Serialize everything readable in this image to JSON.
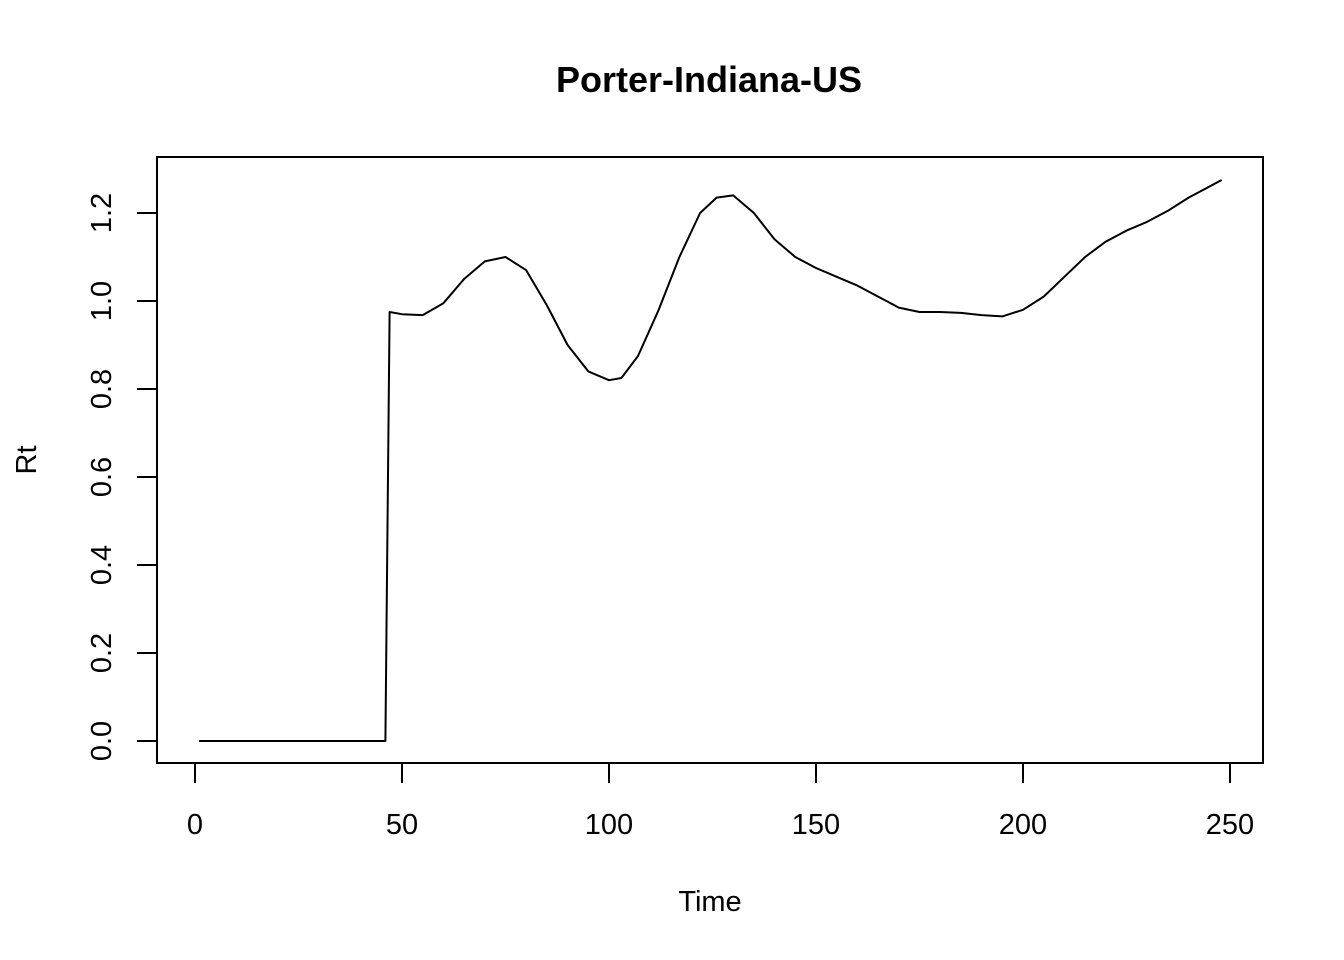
{
  "chart_data": {
    "type": "line",
    "title": "Porter-Indiana-US",
    "xlabel": "Time",
    "ylabel": "Rt",
    "xlim": [
      0,
      250
    ],
    "ylim": [
      0,
      1.2
    ],
    "x_ticks": [
      0,
      50,
      100,
      150,
      200,
      250
    ],
    "y_ticks": [
      0.0,
      0.2,
      0.4,
      0.6,
      0.8,
      1.0,
      1.2
    ],
    "x_tick_labels": [
      "0",
      "50",
      "100",
      "150",
      "200",
      "250"
    ],
    "y_tick_labels": [
      "0.0",
      "0.2",
      "0.4",
      "0.6",
      "0.8",
      "1.0",
      "1.2"
    ],
    "grid": false,
    "series": [
      {
        "color": "#000000",
        "x": [
          1,
          10,
          20,
          30,
          40,
          46,
          47,
          50,
          55,
          60,
          65,
          70,
          75,
          80,
          85,
          90,
          95,
          100,
          103,
          107,
          112,
          117,
          122,
          126,
          130,
          135,
          140,
          145,
          150,
          155,
          160,
          165,
          170,
          175,
          180,
          185,
          190,
          195,
          200,
          205,
          210,
          215,
          220,
          225,
          230,
          235,
          240,
          245,
          248
        ],
        "y": [
          0,
          0,
          0,
          0,
          0,
          0,
          0.975,
          0.97,
          0.968,
          0.995,
          1.05,
          1.09,
          1.1,
          1.07,
          0.99,
          0.9,
          0.84,
          0.82,
          0.825,
          0.875,
          0.98,
          1.1,
          1.2,
          1.235,
          1.24,
          1.2,
          1.14,
          1.1,
          1.075,
          1.055,
          1.035,
          1.01,
          0.985,
          0.975,
          0.975,
          0.973,
          0.968,
          0.965,
          0.98,
          1.01,
          1.055,
          1.1,
          1.135,
          1.16,
          1.18,
          1.205,
          1.235,
          1.26,
          1.275
        ]
      }
    ]
  }
}
